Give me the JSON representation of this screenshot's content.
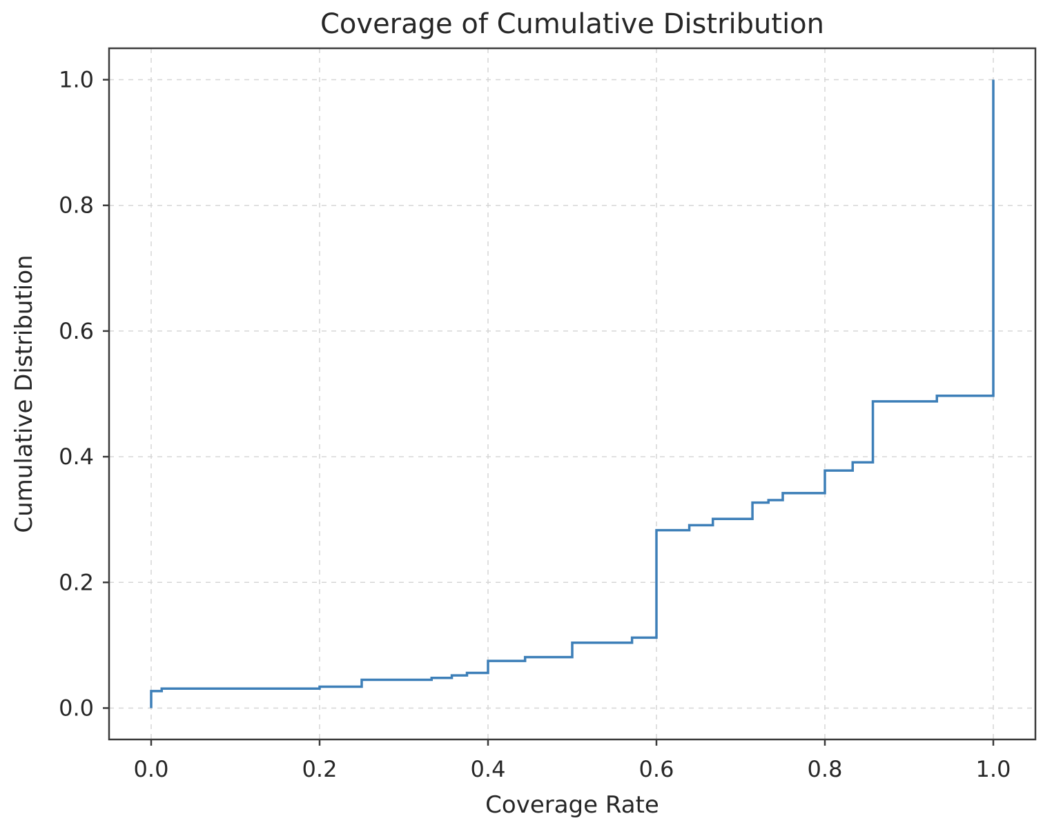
{
  "chart_data": {
    "type": "line",
    "drawstyle": "steps-post",
    "title": "Coverage of Cumulative Distribution",
    "xlabel": "Coverage Rate",
    "ylabel": "Cumulative Distribution",
    "xlim": [
      -0.05,
      1.05
    ],
    "ylim": [
      -0.05,
      1.05
    ],
    "xticks": [
      0.0,
      0.2,
      0.4,
      0.6,
      0.8,
      1.0
    ],
    "xtick_labels": [
      "0.0",
      "0.2",
      "0.4",
      "0.6",
      "0.8",
      "1.0"
    ],
    "yticks": [
      0.0,
      0.2,
      0.4,
      0.6,
      0.8,
      1.0
    ],
    "ytick_labels": [
      "0.0",
      "0.2",
      "0.4",
      "0.6",
      "0.8",
      "1.0"
    ],
    "grid": true,
    "legend": false,
    "series": [
      {
        "color": "#3d7fb8",
        "x": [
          0.0,
          0.0,
          0.0125,
          0.2,
          0.25,
          0.333,
          0.357,
          0.375,
          0.4,
          0.444,
          0.5,
          0.571,
          0.6,
          0.639,
          0.667,
          0.714,
          0.733,
          0.75,
          0.8,
          0.833,
          0.857,
          0.933,
          1.0,
          1.0
        ],
        "y": [
          0.0,
          0.027,
          0.031,
          0.034,
          0.045,
          0.048,
          0.052,
          0.056,
          0.075,
          0.081,
          0.104,
          0.112,
          0.283,
          0.291,
          0.301,
          0.327,
          0.331,
          0.342,
          0.378,
          0.391,
          0.488,
          0.497,
          0.497,
          1.0
        ]
      }
    ]
  }
}
